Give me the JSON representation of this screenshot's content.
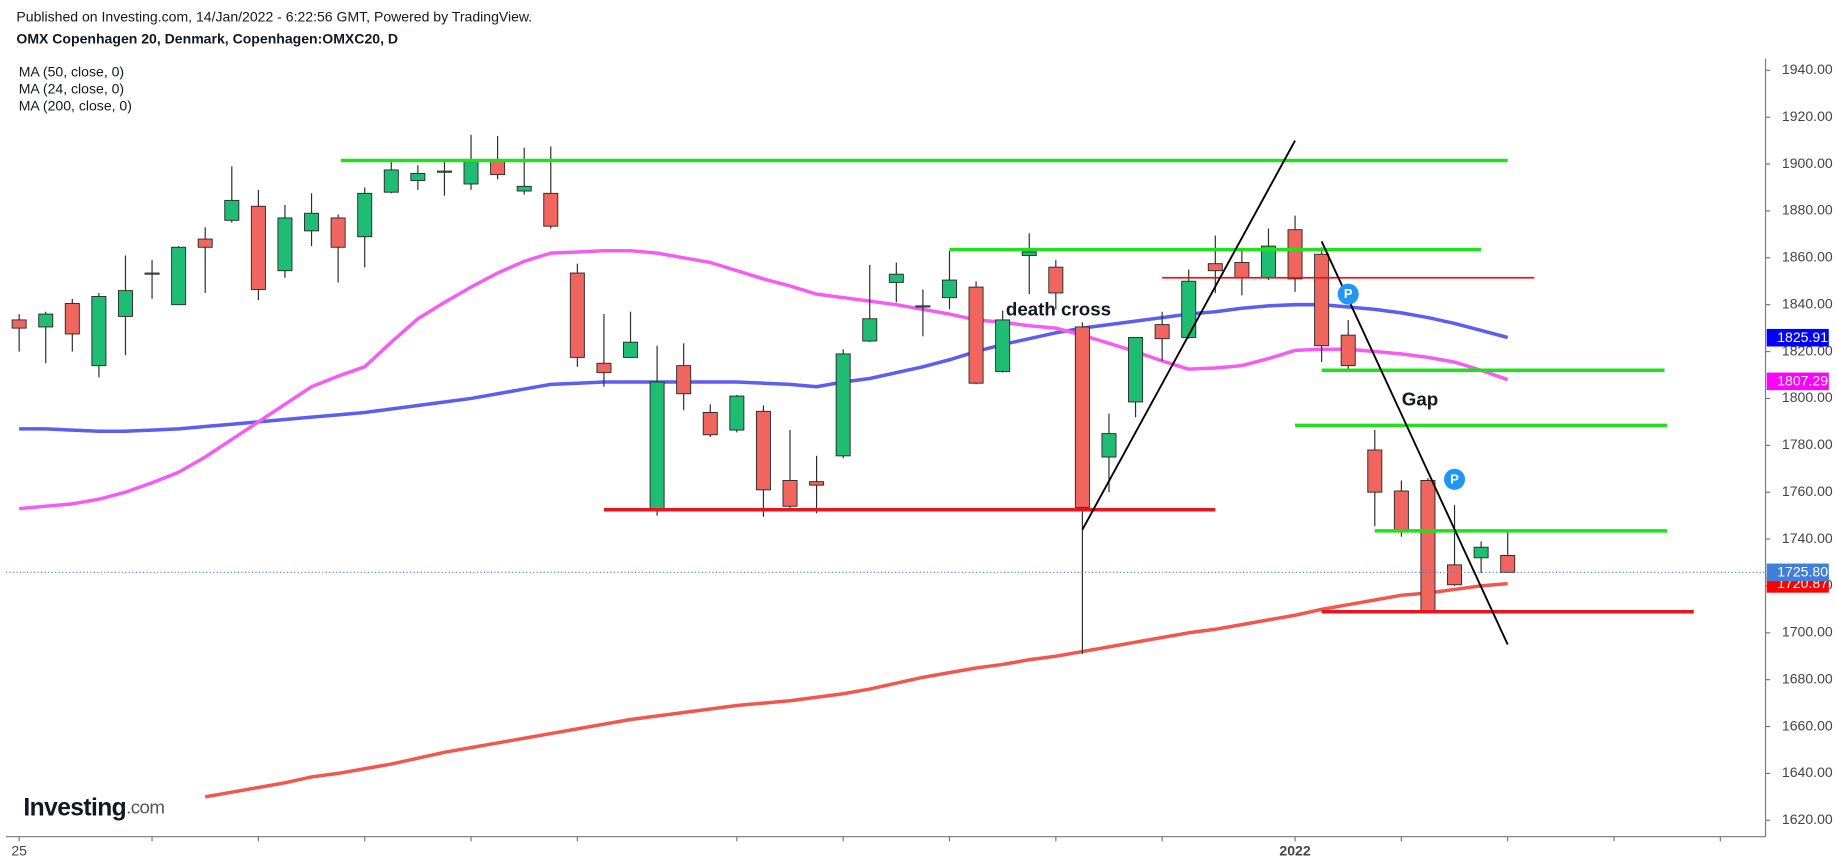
{
  "header": {
    "published": "Published on Investing.com, 14/Jan/2022 - 6:22:56 GMT, Powered by TradingView.",
    "symbol": "OMX Copenhagen 20, Denmark, Copenhagen:OMXC20, D"
  },
  "logo": [
    "Investing",
    ".com"
  ],
  "chart_data": {
    "type": "candlestick",
    "x": [
      0,
      1,
      2,
      3,
      4,
      5,
      6,
      7,
      8,
      9,
      10,
      11,
      12,
      13,
      14,
      15,
      16,
      17,
      18,
      19,
      20,
      21,
      22,
      23,
      24,
      25,
      26,
      27,
      28,
      29,
      30,
      31,
      32,
      33,
      34,
      35,
      36,
      37,
      38,
      39,
      40,
      41,
      42,
      43,
      44,
      45,
      46,
      47,
      48,
      49,
      50,
      51,
      52,
      53,
      54,
      55,
      56
    ],
    "open": [
      1833.5,
      1830.5,
      1840.5,
      1814,
      1835,
      1853,
      1840,
      1868,
      1876,
      1882,
      1854.5,
      1871.5,
      1877,
      1869,
      1888,
      1893,
      1896.5,
      1891.5,
      1901.5,
      1888.5,
      1887.5,
      1853.5,
      1815,
      1817.5,
      1752,
      1814,
      1794,
      1786.5,
      1794.5,
      1765,
      1764.5,
      1775.5,
      1824.5,
      1849.5,
      1839,
      1843,
      1847.5,
      1811.5,
      1861,
      1856,
      1830.5,
      1775,
      1798.5,
      1831.5,
      1826,
      1857.5,
      1858,
      1851.5,
      1872,
      1861.5,
      1827,
      1778,
      1760.5,
      1765,
      1729,
      1732,
      1733
    ],
    "high": [
      1836,
      1837,
      1842.5,
      1845,
      1861,
      1859,
      1865,
      1873,
      1899,
      1889,
      1882.5,
      1887.5,
      1878.5,
      1890,
      1901,
      1899.5,
      1901.5,
      1912.5,
      1912,
      1907,
      1907.5,
      1857.5,
      1836,
      1837,
      1822.5,
      1823.5,
      1797.5,
      1801.5,
      1797,
      1786.5,
      1775.5,
      1821,
      1857,
      1858,
      1846.5,
      1863,
      1850,
      1837.5,
      1870.5,
      1859,
      1832.5,
      1793.5,
      1826,
      1837,
      1855,
      1869.5,
      1863.5,
      1872.5,
      1878,
      1864.5,
      1833.5,
      1786.5,
      1765,
      1766,
      1754.5,
      1739,
      1743.5
    ],
    "low": [
      1820,
      1815,
      1820,
      1809,
      1818.5,
      1842.5,
      1840,
      1845,
      1875,
      1842,
      1851.5,
      1865,
      1849.5,
      1856,
      1887.5,
      1889,
      1886.5,
      1889,
      1893.5,
      1887,
      1872.5,
      1813.5,
      1805,
      1817.5,
      1750,
      1795,
      1783.5,
      1785.5,
      1749.5,
      1752,
      1751,
      1774.5,
      1824,
      1841,
      1826.5,
      1838,
      1806,
      1811,
      1844.5,
      1838,
      1691,
      1760,
      1792,
      1816,
      1825.5,
      1845,
      1844,
      1850.5,
      1845.5,
      1815.5,
      1812,
      1745.5,
      1741,
      1709,
      1720,
      1725.5,
      1726
    ],
    "close": [
      1830,
      1836,
      1827.5,
      1843.5,
      1846,
      1853.5,
      1864.5,
      1864.5,
      1884.5,
      1846.5,
      1877,
      1879,
      1864.5,
      1887.5,
      1897.5,
      1896,
      1897,
      1901,
      1895.5,
      1890.5,
      1873.5,
      1817.5,
      1811,
      1824,
      1807,
      1802,
      1784.5,
      1801,
      1761,
      1754,
      1763,
      1819,
      1834,
      1853,
      1839.5,
      1850.5,
      1806.5,
      1833.5,
      1862.5,
      1845,
      1753.5,
      1785,
      1826,
      1825.5,
      1850,
      1854.5,
      1851.5,
      1865,
      1851,
      1822.5,
      1814,
      1760,
      1744,
      1709.5,
      1720.5,
      1736.5,
      1725.8
    ],
    "up_color": "#1fbd74",
    "down_color": "#f0665f",
    "last_price": {
      "value": 1725.8,
      "label": "1725.80",
      "color": "#3f7fd8"
    },
    "series": [
      {
        "name": "MA (50, close, 0)",
        "color": "#5b5ef0",
        "values": [
          1787,
          1787,
          1786.5,
          1786,
          1786,
          1786.5,
          1787,
          1788,
          1789,
          1790,
          1791,
          1792,
          1793,
          1794,
          1795.5,
          1797,
          1798.5,
          1800,
          1802,
          1804,
          1806,
          1806.5,
          1807,
          1807,
          1807,
          1807,
          1807,
          1807,
          1806.5,
          1806,
          1805,
          1807,
          1808.5,
          1811,
          1813.5,
          1816.5,
          1820,
          1823,
          1825.5,
          1828,
          1830,
          1831.5,
          1833,
          1834.5,
          1836,
          1837,
          1838.5,
          1839.5,
          1840,
          1840,
          1839,
          1838,
          1836.5,
          1834.5,
          1832,
          1829,
          1826
        ],
        "last_label": {
          "value": 1825.91,
          "label": "1825.91",
          "color": "#0000ff"
        }
      },
      {
        "name": "MA (24, close, 0)",
        "color": "#f45ef0",
        "values": [
          1753,
          1754,
          1755,
          1757,
          1760,
          1764,
          1768.5,
          1775,
          1782.5,
          1790,
          1797.5,
          1805,
          1809.5,
          1813.5,
          1824,
          1834,
          1841,
          1847.5,
          1853.5,
          1858.5,
          1862,
          1862.5,
          1863,
          1863,
          1862,
          1860,
          1858,
          1854.5,
          1851,
          1848,
          1844.5,
          1843,
          1841.5,
          1840,
          1838,
          1836,
          1833.5,
          1832.5,
          1831,
          1830,
          1827,
          1823.5,
          1820,
          1816,
          1812.5,
          1813,
          1814,
          1817,
          1820.5,
          1821,
          1821,
          1820,
          1819,
          1817.5,
          1815.5,
          1812,
          1808
        ],
        "last_label": {
          "value": 1807.29,
          "label": "1807.29",
          "color": "#ff00ff"
        }
      },
      {
        "name": "MA (200, close, 0)",
        "color": "#f0584f",
        "values": [
          null,
          null,
          null,
          null,
          null,
          null,
          null,
          1630,
          1632,
          1634,
          1636,
          1638.5,
          1640,
          1642,
          1644,
          1646.5,
          1649,
          1651,
          1653,
          1655,
          1657,
          1659,
          1661,
          1663,
          1664.5,
          1666,
          1667.5,
          1669,
          1670,
          1671,
          1672.5,
          1674,
          1676,
          1678.5,
          1681,
          1683,
          1685,
          1686.5,
          1688.5,
          1690,
          1692,
          1694,
          1696,
          1698,
          1700,
          1701.5,
          1703.5,
          1705.5,
          1707.5,
          1710,
          1712,
          1714,
          1716,
          1717,
          1718.5,
          1720,
          1721
        ],
        "last_label": {
          "value": 1720.87,
          "label": "1720.87",
          "color": "#ff0000"
        }
      }
    ],
    "drawings": [
      {
        "type": "hline",
        "color": "#22e01e",
        "x": [
          12.1,
          56
        ],
        "y": 1901.5
      },
      {
        "type": "hline",
        "color": "#22e01e",
        "x": [
          35,
          55
        ],
        "y": 1863.5
      },
      {
        "type": "hline",
        "color": "#22e01e",
        "x": [
          49,
          61.9
        ],
        "y": 1812
      },
      {
        "type": "hline",
        "color": "#22e01e",
        "x": [
          48,
          62
        ],
        "y": 1788.5
      },
      {
        "type": "hline",
        "color": "#22e01e",
        "x": [
          51,
          62
        ],
        "y": 1743.5
      },
      {
        "type": "hline",
        "color": "#e8141e",
        "x": [
          22,
          45
        ],
        "y": 1752.5
      },
      {
        "type": "hline",
        "color": "#e8141e",
        "x": [
          43,
          57
        ],
        "y": 1851.5,
        "thin": true
      },
      {
        "type": "hline",
        "color": "#e8141e",
        "x": [
          49,
          63
        ],
        "y": 1709
      },
      {
        "type": "trend",
        "color": "#000000",
        "x": [
          40,
          48
        ],
        "y": [
          1744,
          1910
        ]
      },
      {
        "type": "trend",
        "color": "#000000",
        "x": [
          49,
          56
        ],
        "y": [
          1867,
          1695
        ]
      },
      {
        "type": "text",
        "text": "death cross",
        "x": 39.1,
        "y": 1837.5
      },
      {
        "type": "text",
        "text": "Gap",
        "x": 52.7,
        "y": 1799
      },
      {
        "type": "badge",
        "text": "P",
        "x": 50,
        "y": 1844.5
      },
      {
        "type": "badge",
        "text": "P",
        "x": 54,
        "y": 1765.5
      }
    ],
    "xlim": [
      -0.5,
      65.7
    ],
    "xticks": [
      {
        "value": 0,
        "label": "25"
      },
      {
        "value": 48,
        "label": "2022"
      }
    ],
    "xminorticks": [
      5,
      9,
      13,
      17,
      21,
      27,
      31,
      35,
      39,
      43,
      52,
      56,
      60,
      64
    ],
    "ylim": [
      1613,
      1945
    ],
    "yticks": [
      {
        "value": 1620,
        "label": "1620.00"
      },
      {
        "value": 1640,
        "label": "1640.00"
      },
      {
        "value": 1660,
        "label": "1660.00"
      },
      {
        "value": 1680,
        "label": "1680.00"
      },
      {
        "value": 1700,
        "label": "1700.00"
      },
      {
        "value": 1720,
        "label": "1720.00"
      },
      {
        "value": 1740,
        "label": "1740.00"
      },
      {
        "value": 1760,
        "label": "1760.00"
      },
      {
        "value": 1780,
        "label": "1780.00"
      },
      {
        "value": 1800,
        "label": "1800.00"
      },
      {
        "value": 1820,
        "label": "1820.00"
      },
      {
        "value": 1840,
        "label": "1840.00"
      },
      {
        "value": 1860,
        "label": "1860.00"
      },
      {
        "value": 1880,
        "label": "1880.00"
      },
      {
        "value": 1900,
        "label": "1900.00"
      },
      {
        "value": 1920,
        "label": "1920.00"
      },
      {
        "value": 1940,
        "label": "1940.00"
      }
    ],
    "grid": false
  }
}
